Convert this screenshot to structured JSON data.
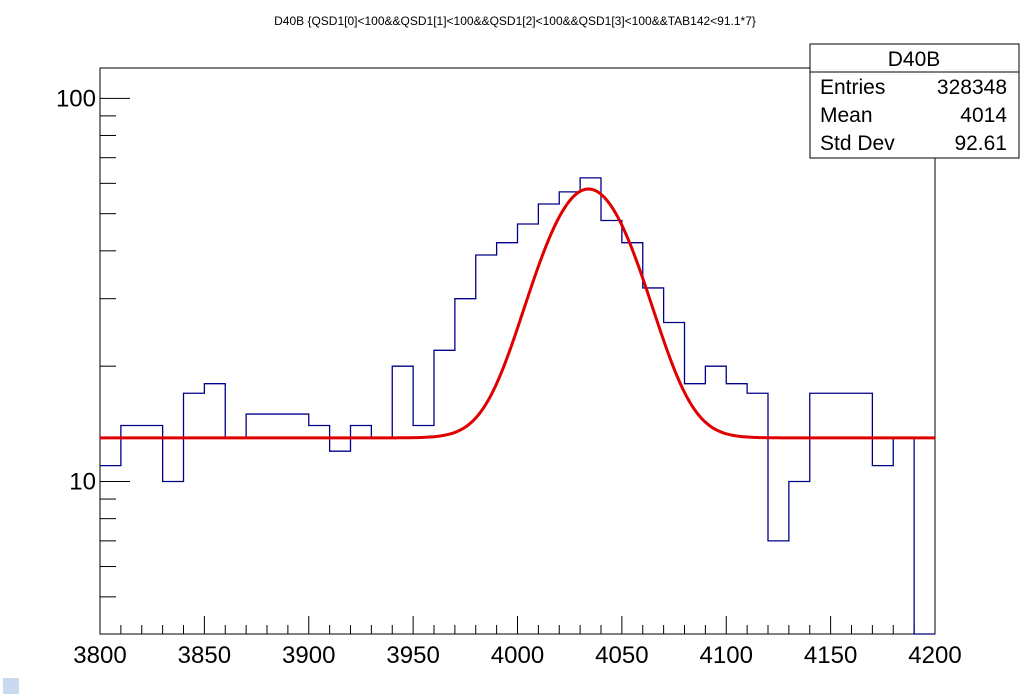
{
  "chart_data": {
    "type": "histogram",
    "title": "D40B {QSD1[0]<100&&QSD1[1]<100&&QSD1[2]<100&&QSD1[3]<100&&TAB142<91.1*7}",
    "xlabel": "",
    "ylabel": "",
    "xlim": [
      3800,
      4200
    ],
    "ylim": [
      4,
      120
    ],
    "y_scale": "log",
    "x_ticks": [
      "3800",
      "3850",
      "3900",
      "3950",
      "4000",
      "4050",
      "4100",
      "4150",
      "4200"
    ],
    "y_ticks": [
      "10",
      "100"
    ],
    "bin_width": 10,
    "bin_edges_start": 3800,
    "bin_values": [
      11,
      14,
      14,
      10,
      17,
      18,
      13,
      15,
      15,
      15,
      14,
      12,
      14,
      13,
      20,
      14,
      22,
      30,
      39,
      42,
      47,
      53,
      57,
      62,
      48,
      42,
      32,
      26,
      18,
      20,
      18,
      17,
      7,
      10,
      17,
      17,
      17,
      11,
      13,
      4
    ],
    "fit": {
      "type": "gaussian+constant",
      "constant": 13,
      "amplitude": 45,
      "mean": 4034,
      "sigma": 21
    },
    "histogram_color": "#00008b",
    "fit_color": "#e00000",
    "stats": {
      "name": "D40B",
      "rows": [
        {
          "label": "Entries",
          "value": "328348"
        },
        {
          "label": "Mean",
          "value": "4014"
        },
        {
          "label": "Std Dev",
          "value": "92.61"
        }
      ]
    }
  }
}
